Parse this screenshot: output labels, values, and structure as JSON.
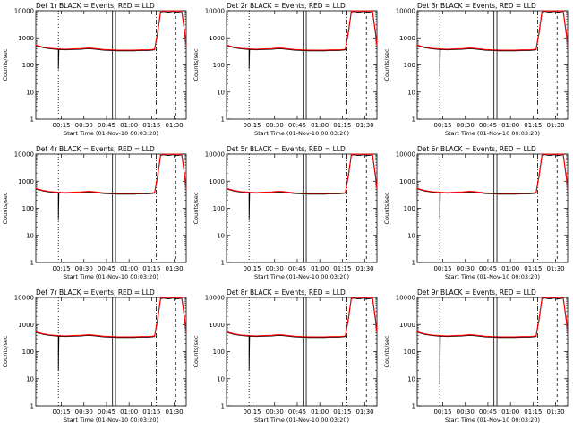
{
  "chart_data": [
    {
      "type": "line",
      "title": "Det 1r BLACK = Events, RED = LLD"
    },
    {
      "type": "line",
      "title": "Det 2r BLACK = Events, RED = LLD"
    },
    {
      "type": "line",
      "title": "Det 3r BLACK = Events, RED = LLD"
    },
    {
      "type": "line",
      "title": "Det 4r BLACK = Events, RED = LLD"
    },
    {
      "type": "line",
      "title": "Det 5r BLACK = Events, RED = LLD"
    },
    {
      "type": "line",
      "title": "Det 6r BLACK = Events, RED = LLD"
    },
    {
      "type": "line",
      "title": "Det 7r BLACK = Events, RED = LLD"
    },
    {
      "type": "line",
      "title": "Det 8r BLACK = Events, RED = LLD"
    },
    {
      "type": "line",
      "title": "Det 9r BLACK = Events, RED = LLD"
    }
  ],
  "common": {
    "ylabel": "Counts/sec",
    "xlabel": "Start Time (01-Nov-10 00:03:20)",
    "y_scale": "log",
    "ylim": [
      1,
      10000
    ],
    "y_ticks": [
      "1",
      "10",
      "100",
      "1000",
      "10000"
    ],
    "x_ticks": [
      "00:15",
      "00:30",
      "00:45",
      "01:00",
      "01:15",
      "01:30"
    ],
    "xlim_minutes_after_start": [
      -5,
      95
    ],
    "x_tick_values_min": [
      12,
      27,
      42,
      57,
      72,
      87
    ],
    "markers": {
      "dotted_min": 10,
      "solid_min": [
        46,
        48
      ],
      "dashdot_min": 75,
      "dashed_min": 88
    },
    "dip": {
      "at_min": 10,
      "values": [
        70,
        70,
        40,
        35,
        35,
        40,
        20,
        20,
        6
      ]
    },
    "series": [
      {
        "name": "Events",
        "color": "#000000",
        "x": [
          -5,
          0,
          5,
          10,
          15,
          20,
          25,
          30,
          35,
          40,
          45,
          50,
          55,
          60,
          65,
          70,
          74,
          76,
          78,
          80,
          82,
          84,
          86,
          88,
          90,
          92,
          94,
          95
        ],
        "y": [
          520,
          430,
          390,
          370,
          360,
          370,
          380,
          400,
          380,
          350,
          340,
          330,
          330,
          330,
          340,
          340,
          360,
          1500,
          9000,
          9500,
          9000,
          9000,
          9500,
          9000,
          9000,
          9500,
          1500,
          500
        ]
      },
      {
        "name": "LLD",
        "color": "#ff0000",
        "x": [
          -5,
          0,
          5,
          10,
          15,
          20,
          25,
          30,
          35,
          40,
          45,
          50,
          55,
          60,
          65,
          70,
          74,
          76,
          78,
          80,
          82,
          84,
          86,
          88,
          90,
          92,
          94,
          95
        ],
        "y": [
          540,
          450,
          410,
          390,
          380,
          390,
          400,
          420,
          400,
          370,
          360,
          350,
          350,
          350,
          360,
          360,
          380,
          1700,
          9800,
          10000,
          9800,
          9800,
          10000,
          9800,
          9800,
          10000,
          1700,
          520
        ]
      }
    ]
  }
}
